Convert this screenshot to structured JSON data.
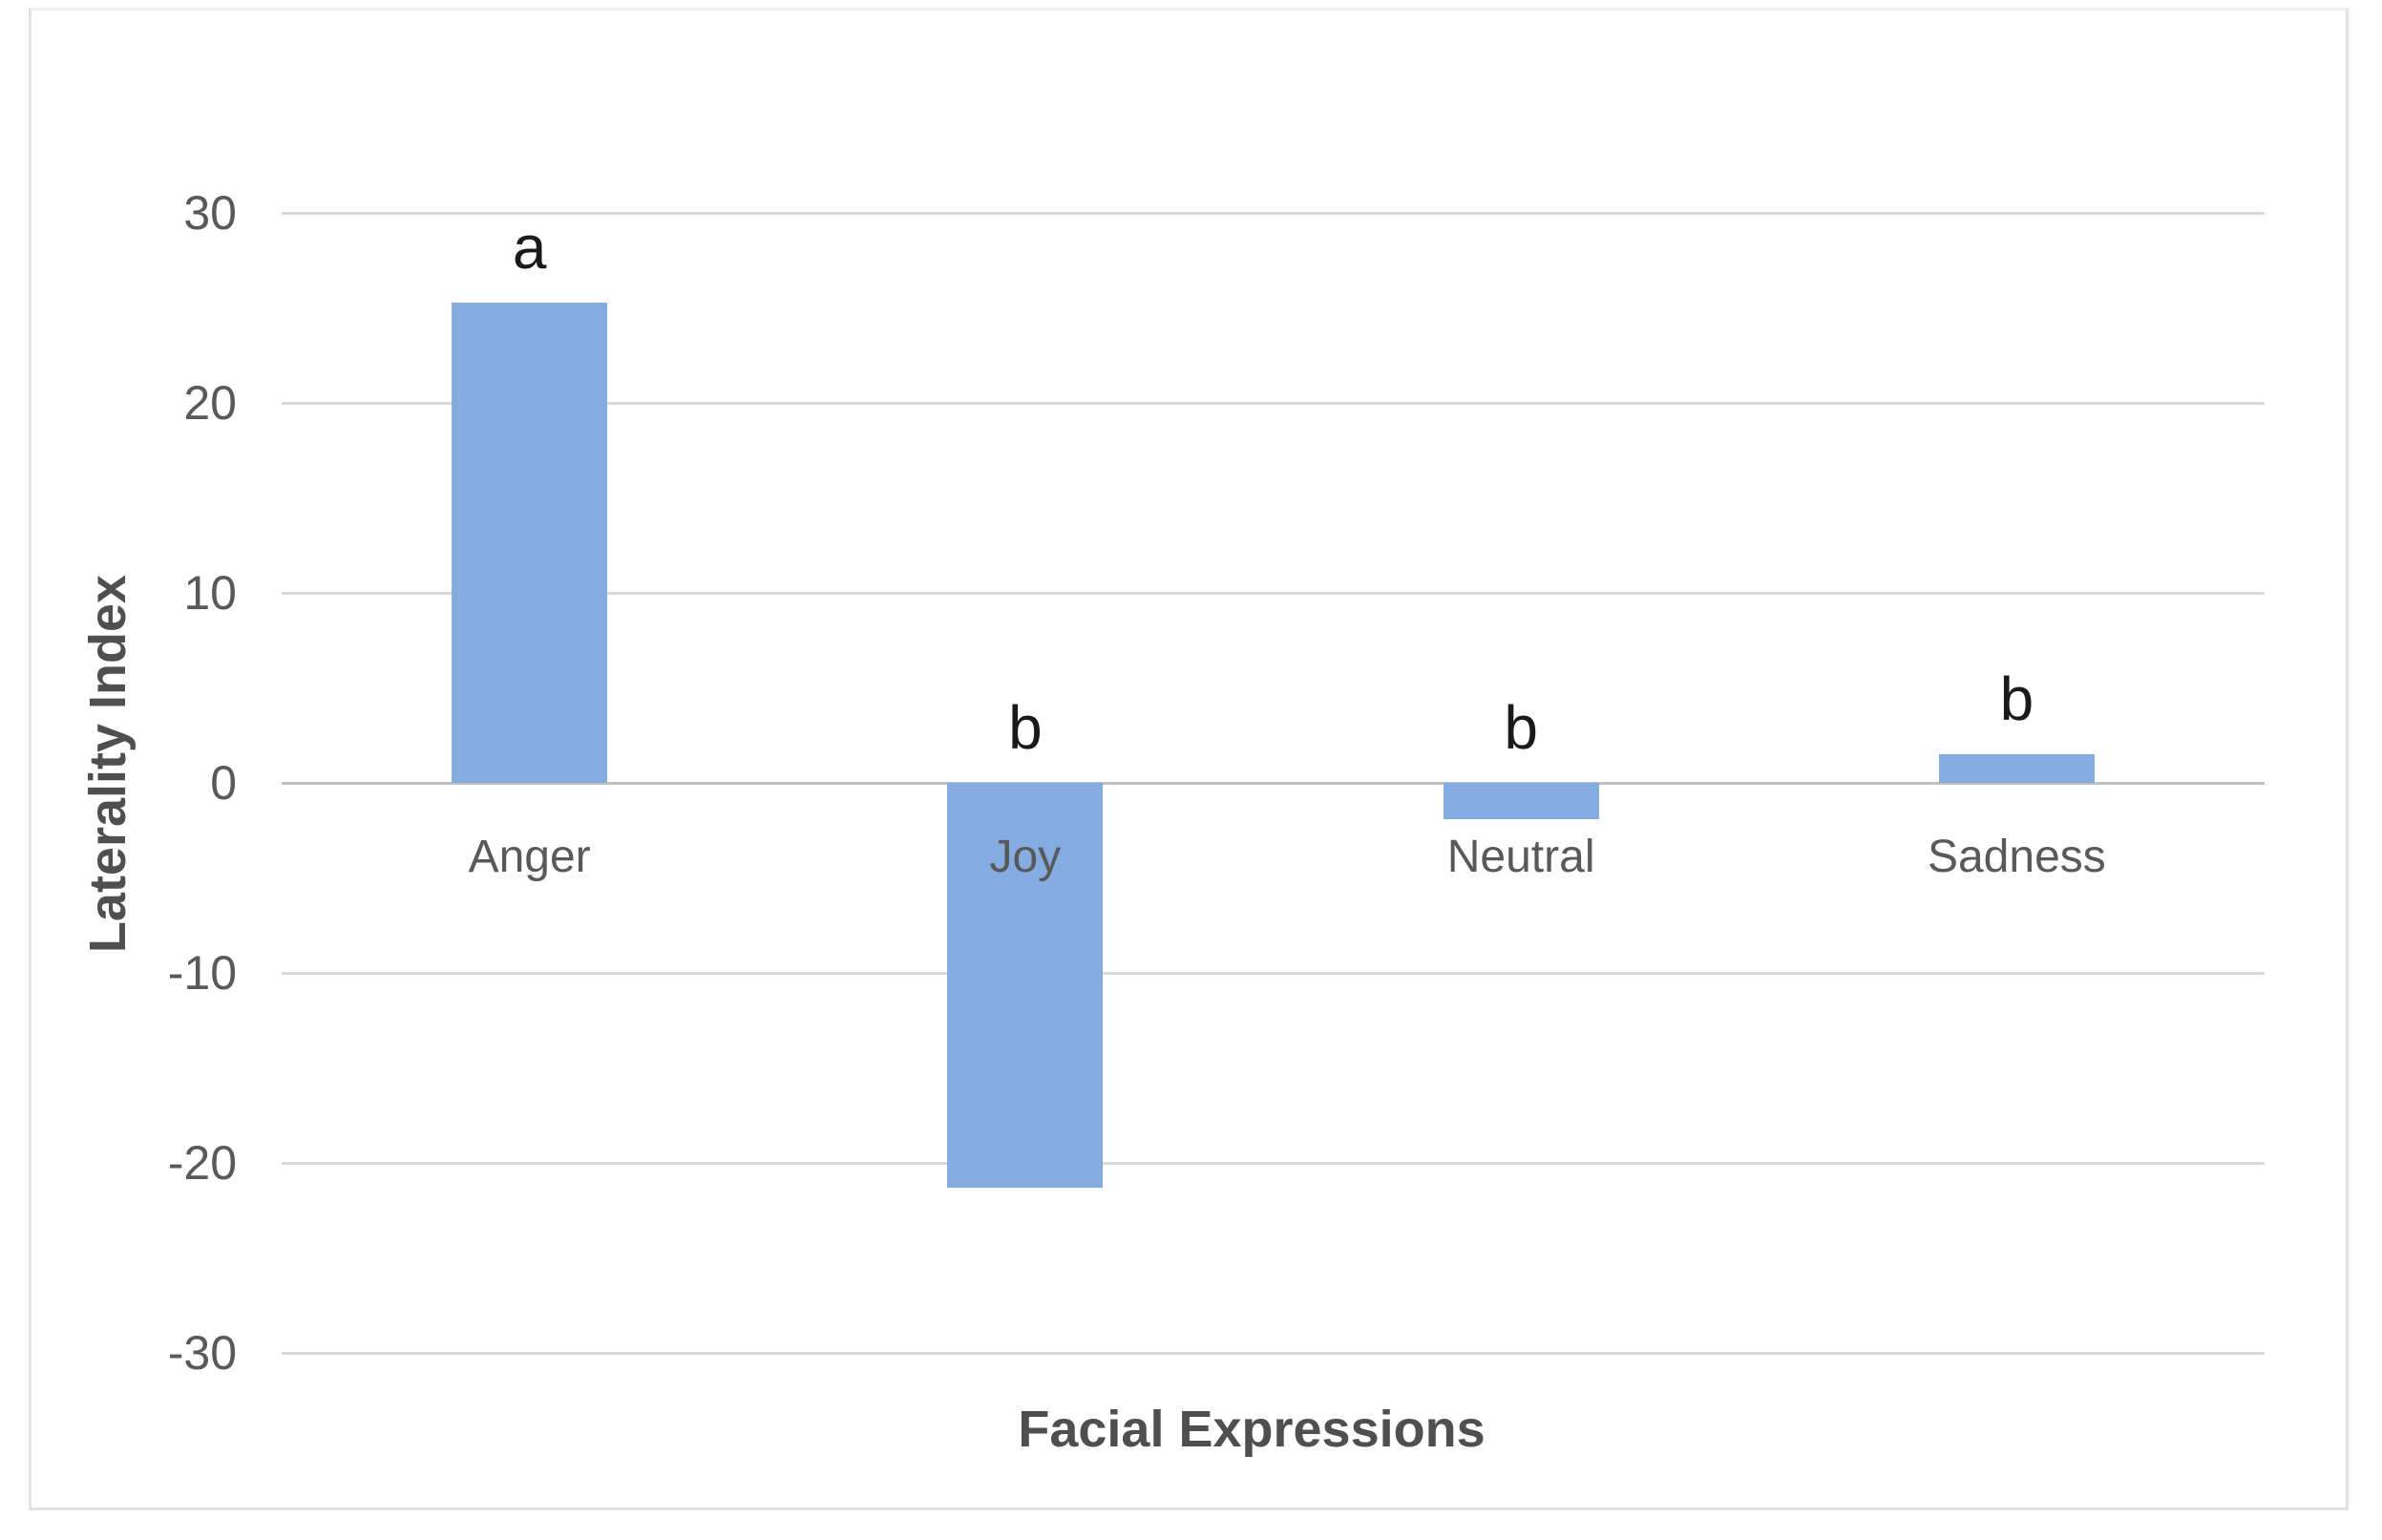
{
  "chart_data": {
    "type": "bar",
    "title": "",
    "xlabel": "Facial Expressions",
    "ylabel": "Laterality Index",
    "categories": [
      "Anger",
      "Joy",
      "Neutral",
      "Sadness"
    ],
    "values": [
      25.3,
      -21.3,
      -1.9,
      1.5
    ],
    "significance_letters": [
      "a",
      "b",
      "b",
      "b"
    ],
    "series": [
      {
        "name": "Laterality Index",
        "values": [
          25.3,
          -21.3,
          -1.9,
          1.5
        ]
      }
    ],
    "yticks": [
      30,
      20,
      10,
      0,
      -10,
      -20,
      -30
    ],
    "ylim": [
      -30,
      30
    ],
    "grid": true,
    "legend": "none",
    "colors": {
      "bar_fill": "#84ACE0",
      "gridline": "#d9d9d9",
      "zero_line": "#c0c0c0",
      "tick_text": "#595959",
      "category_text": "#595959",
      "axis_title_text": "#4f4f4f",
      "letter_text": "#1a1a1a",
      "frame_border": "#e2e2e2",
      "background": "#ffffff"
    }
  }
}
